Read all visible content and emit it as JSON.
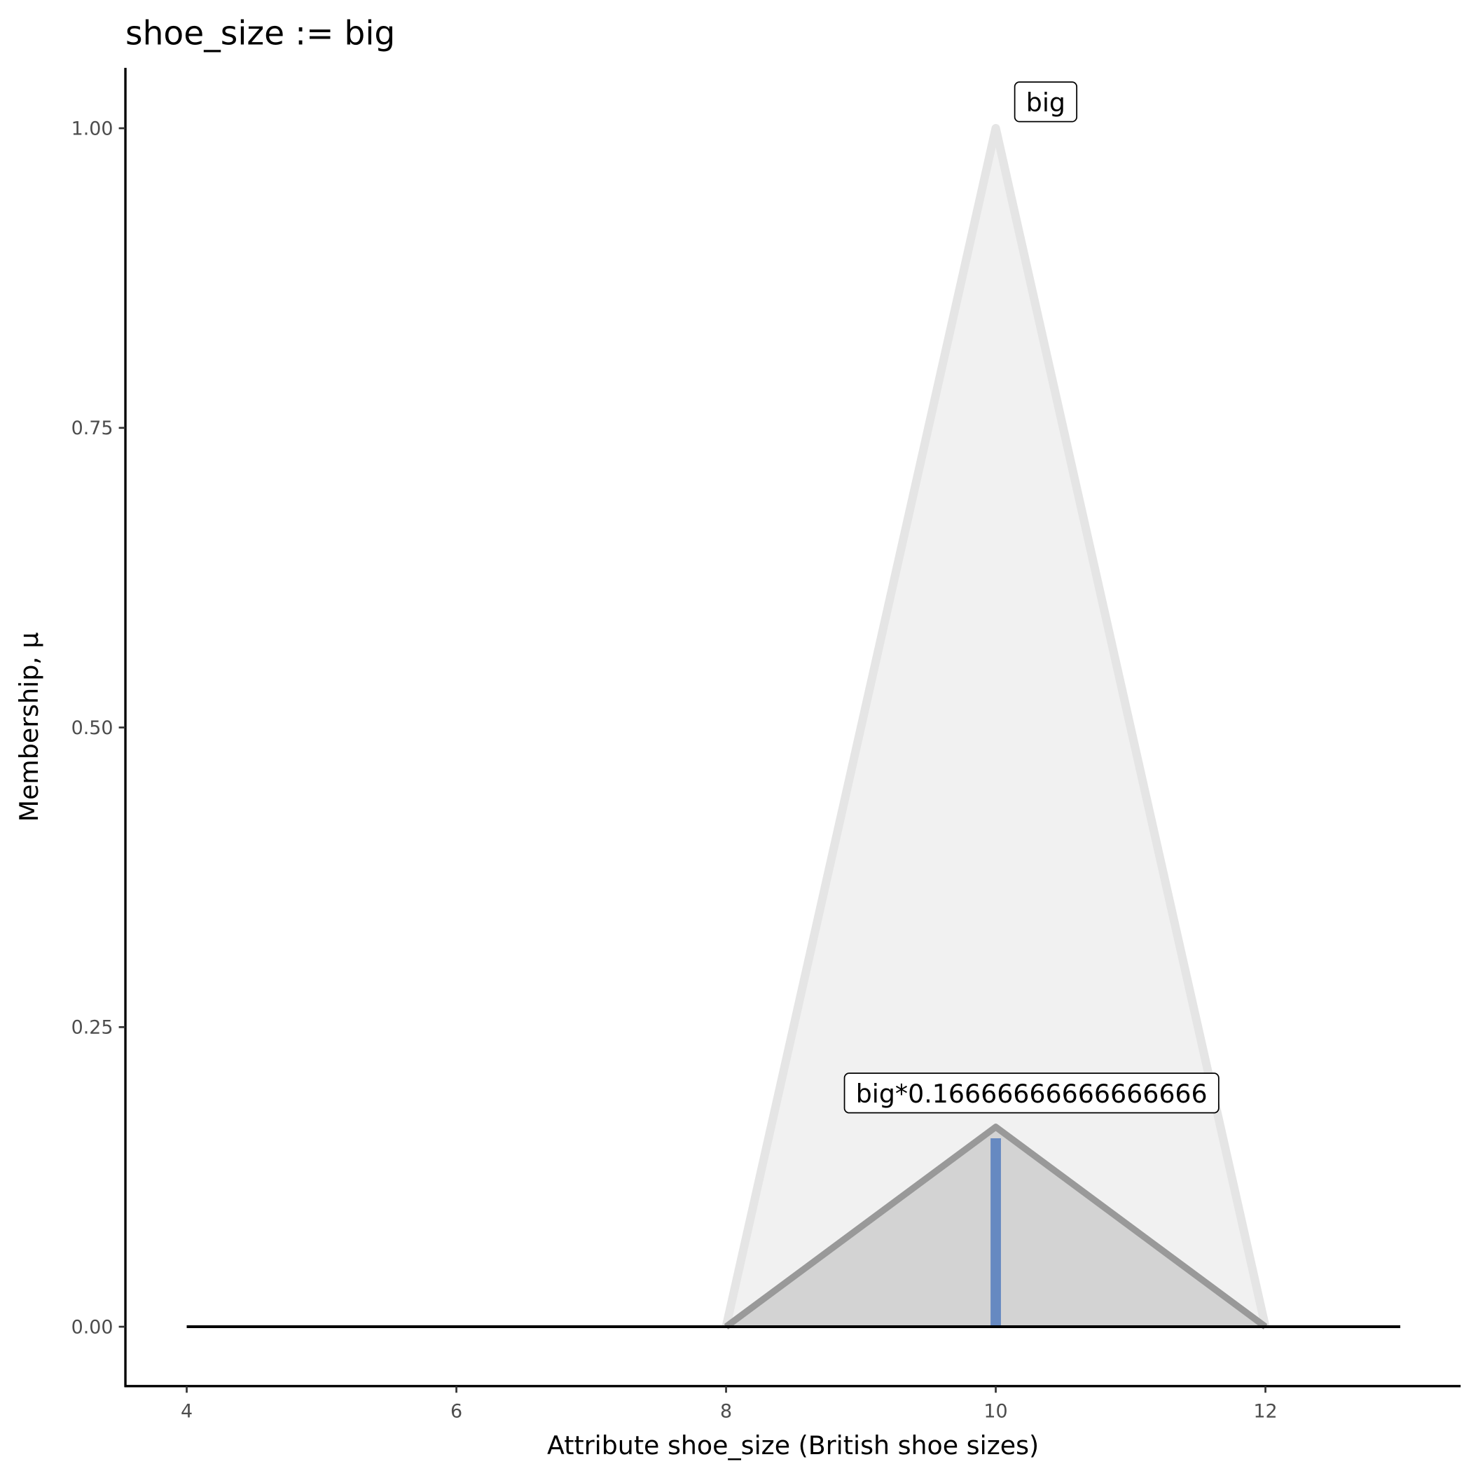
{
  "chart_data": {
    "type": "area",
    "title": "shoe_size := big",
    "xlabel": "Attribute shoe_size (British shoe sizes)",
    "ylabel": "Membership, μ",
    "xlim": [
      3.55,
      13.45
    ],
    "ylim": [
      -0.05,
      1.05
    ],
    "xticks": [
      4,
      6,
      8,
      10,
      12
    ],
    "xtick_labels": [
      "4",
      "6",
      "8",
      "10",
      "12"
    ],
    "yticks": [
      0,
      0.25,
      0.5,
      0.75,
      1
    ],
    "ytick_labels": [
      "0.00",
      "0.25",
      "0.50",
      "0.75",
      "1.00"
    ],
    "grid": false,
    "series": [
      {
        "name": "big",
        "x": [
          8,
          10,
          12
        ],
        "y": [
          0,
          1,
          0
        ],
        "fill": "#f1f1f1",
        "stroke": "#e5e5e5"
      },
      {
        "name": "big*0.16666666666666666",
        "x": [
          8,
          10,
          12
        ],
        "y": [
          0,
          0.16666666666666666,
          0
        ],
        "fill": "#d3d3d3",
        "stroke": "#999999"
      }
    ],
    "baseline": {
      "x": [
        4,
        13
      ],
      "y": 0,
      "color": "#000000"
    },
    "marker_line": {
      "x": 10,
      "y": [
        0,
        0.16666666666666666
      ],
      "color": "#6689c1"
    },
    "annotations": [
      {
        "text": "big",
        "x": 10,
        "y": 1
      },
      {
        "text": "big*0.16666666666666666",
        "x": 10,
        "y": 0.16666666666666666
      }
    ]
  }
}
